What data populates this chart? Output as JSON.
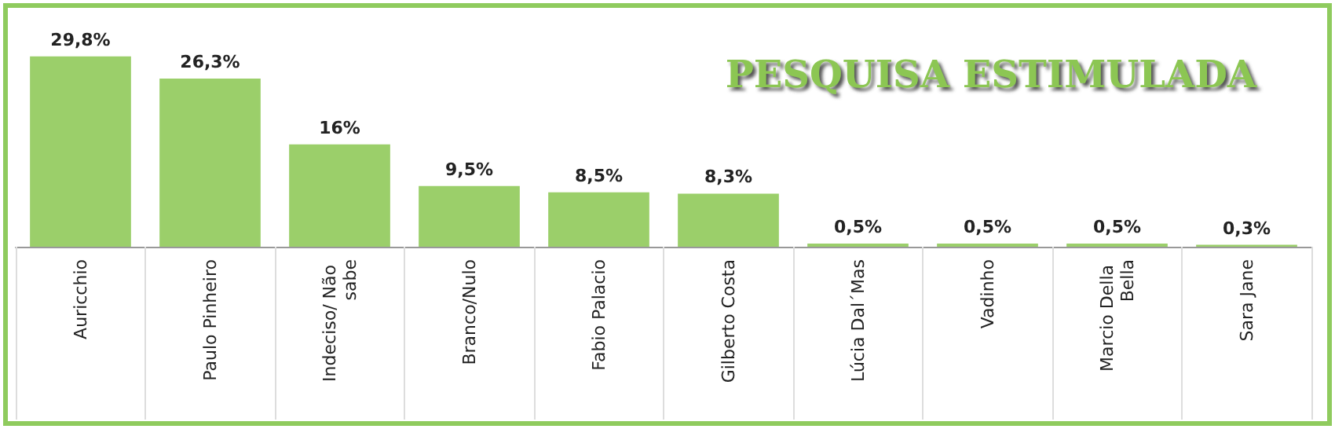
{
  "chart_data": {
    "type": "bar",
    "title": "PESQUISA ESTIMULADA",
    "categories": [
      "Auricchio",
      "Paulo Pinheiro",
      "Indeciso/ Não sabe",
      "Branco/Nulo",
      "Fabio Palacio",
      "Gilberto Costa",
      "Lúcia Dal´Mas",
      "Vadinho",
      "Marcio Della Bella",
      "Sara Jane"
    ],
    "values": [
      29.8,
      26.3,
      16,
      9.5,
      8.5,
      8.3,
      0.5,
      0.5,
      0.5,
      0.3
    ],
    "value_labels": [
      "29,8%",
      "26,3%",
      "16%",
      "9,5%",
      "8,5%",
      "8,3%",
      "0,5%",
      "0,5%",
      "0,5%",
      "0,3%"
    ],
    "color": "#9bcf6a"
  }
}
